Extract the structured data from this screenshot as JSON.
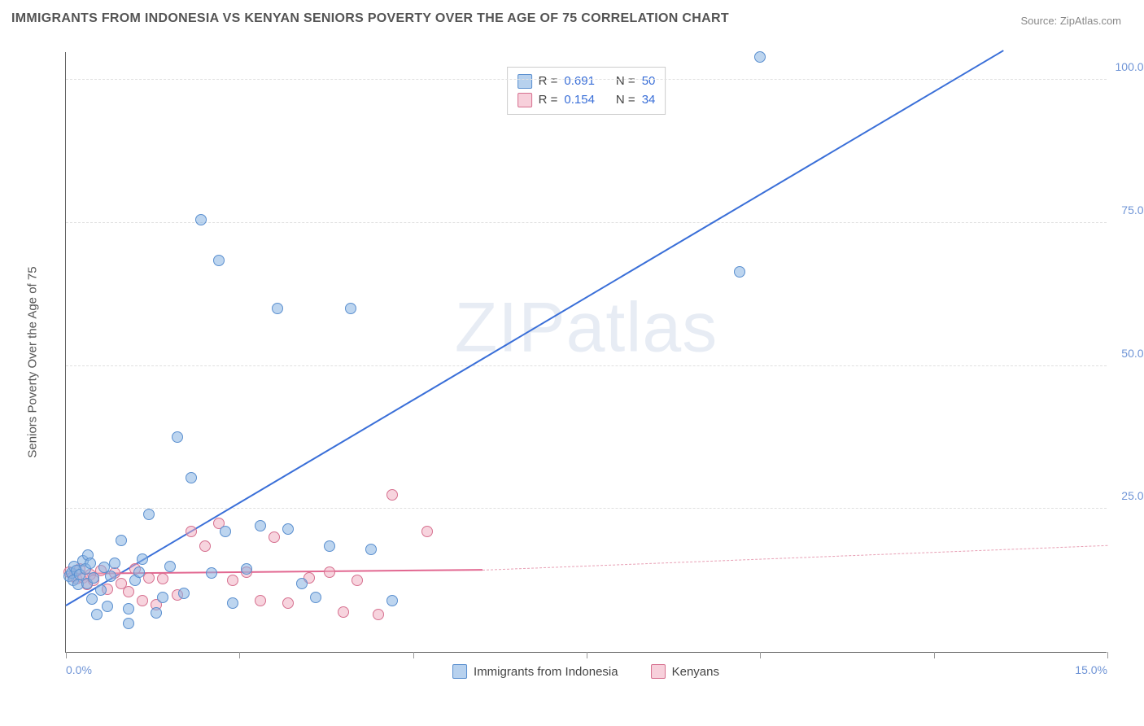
{
  "title": "IMMIGRANTS FROM INDONESIA VS KENYAN SENIORS POVERTY OVER THE AGE OF 75 CORRELATION CHART",
  "source": "Source: ZipAtlas.com",
  "watermark": "ZIPatlas",
  "chart": {
    "type": "scatter",
    "ylabel": "Seniors Poverty Over the Age of 75",
    "xlim": [
      0,
      15
    ],
    "ylim": [
      0,
      105
    ],
    "xticks": [
      0,
      2.5,
      5,
      7.5,
      10,
      12.5,
      15
    ],
    "xtick_labels_shown": {
      "0": "0.0%",
      "15": "15.0%"
    },
    "yticks": [
      25,
      50,
      75,
      100
    ],
    "ytick_labels": [
      "25.0%",
      "50.0%",
      "75.0%",
      "100.0%"
    ],
    "background_color": "#ffffff",
    "grid_color": "#e0e0e0",
    "font_family": "Arial",
    "title_fontsize": 16,
    "label_fontsize": 15,
    "tick_fontsize": 14,
    "tick_color": "#6f94d6",
    "marker_size": 14
  },
  "series": [
    {
      "key": "indonesia",
      "label": "Immigrants from Indonesia",
      "color_fill": "rgba(135,179,226,0.55)",
      "color_stroke": "#5a8fcf",
      "trend_color": "#3a6fd8",
      "R": "0.691",
      "N": "50",
      "trend": {
        "x1": 0.0,
        "y1": 8.0,
        "x2": 13.5,
        "y2": 105.0
      },
      "points": [
        [
          0.05,
          13.2
        ],
        [
          0.08,
          13.8
        ],
        [
          0.1,
          12.5
        ],
        [
          0.12,
          15.0
        ],
        [
          0.15,
          14.2
        ],
        [
          0.18,
          11.8
        ],
        [
          0.2,
          13.5
        ],
        [
          0.25,
          16.0
        ],
        [
          0.28,
          14.5
        ],
        [
          0.3,
          12.0
        ],
        [
          0.32,
          17.0
        ],
        [
          0.35,
          15.5
        ],
        [
          0.38,
          9.2
        ],
        [
          0.4,
          13.0
        ],
        [
          0.45,
          6.5
        ],
        [
          0.5,
          10.8
        ],
        [
          0.55,
          14.8
        ],
        [
          0.6,
          8.0
        ],
        [
          0.65,
          13.2
        ],
        [
          0.7,
          15.5
        ],
        [
          0.8,
          19.5
        ],
        [
          0.9,
          7.5
        ],
        [
          0.9,
          5.0
        ],
        [
          1.0,
          12.5
        ],
        [
          1.05,
          14.0
        ],
        [
          1.1,
          16.2
        ],
        [
          1.2,
          24.0
        ],
        [
          1.3,
          6.8
        ],
        [
          1.4,
          9.5
        ],
        [
          1.5,
          15.0
        ],
        [
          1.6,
          37.5
        ],
        [
          1.7,
          10.2
        ],
        [
          1.8,
          30.5
        ],
        [
          1.95,
          75.5
        ],
        [
          2.1,
          13.8
        ],
        [
          2.2,
          68.5
        ],
        [
          2.3,
          21.0
        ],
        [
          2.4,
          8.5
        ],
        [
          2.6,
          14.5
        ],
        [
          2.8,
          22.0
        ],
        [
          3.05,
          60.0
        ],
        [
          3.2,
          21.5
        ],
        [
          3.4,
          12.0
        ],
        [
          3.6,
          9.5
        ],
        [
          3.8,
          18.5
        ],
        [
          4.1,
          60.0
        ],
        [
          4.4,
          18.0
        ],
        [
          4.7,
          9.0
        ],
        [
          9.7,
          66.5
        ],
        [
          10.0,
          104.0
        ]
      ]
    },
    {
      "key": "kenyans",
      "label": "Kenyans",
      "color_fill": "rgba(240,170,190,0.5)",
      "color_stroke": "#d6708f",
      "trend_color": "#e26891",
      "R": "0.154",
      "N": "34",
      "trend_solid": {
        "x1": 0.0,
        "y1": 13.5,
        "x2": 6.0,
        "y2": 14.2
      },
      "trend_dashed": {
        "x1": 6.0,
        "y1": 14.2,
        "x2": 15.0,
        "y2": 18.5
      },
      "points": [
        [
          0.05,
          14.0
        ],
        [
          0.1,
          13.2
        ],
        [
          0.15,
          12.8
        ],
        [
          0.2,
          14.5
        ],
        [
          0.25,
          13.0
        ],
        [
          0.3,
          11.8
        ],
        [
          0.35,
          13.5
        ],
        [
          0.4,
          12.5
        ],
        [
          0.5,
          14.2
        ],
        [
          0.6,
          11.0
        ],
        [
          0.7,
          13.8
        ],
        [
          0.8,
          12.0
        ],
        [
          0.9,
          10.5
        ],
        [
          1.0,
          14.5
        ],
        [
          1.1,
          9.0
        ],
        [
          1.2,
          13.0
        ],
        [
          1.3,
          8.2
        ],
        [
          1.4,
          12.8
        ],
        [
          1.6,
          10.0
        ],
        [
          1.8,
          21.0
        ],
        [
          2.0,
          18.5
        ],
        [
          2.2,
          22.5
        ],
        [
          2.4,
          12.5
        ],
        [
          2.6,
          14.0
        ],
        [
          2.8,
          9.0
        ],
        [
          3.0,
          20.0
        ],
        [
          3.2,
          8.5
        ],
        [
          3.5,
          13.0
        ],
        [
          3.8,
          14.0
        ],
        [
          4.0,
          7.0
        ],
        [
          4.2,
          12.5
        ],
        [
          4.5,
          6.5
        ],
        [
          4.7,
          27.5
        ],
        [
          5.2,
          21.0
        ]
      ]
    }
  ],
  "legend_stats_labels": {
    "R": "R =",
    "N": "N ="
  }
}
